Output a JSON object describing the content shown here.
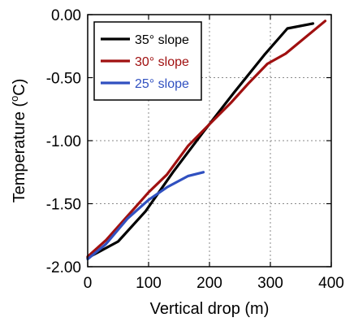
{
  "chart_data": {
    "type": "line",
    "xlabel": "Vertical drop (m)",
    "ylabel_prefix": "Temperature (",
    "ylabel_unit_sup": "o",
    "ylabel_suffix": "C)",
    "xlim": [
      0,
      400
    ],
    "ylim": [
      -2.0,
      0.0
    ],
    "x_ticks": [
      0,
      100,
      200,
      300,
      400
    ],
    "x_tick_labels": [
      "0",
      "100",
      "200",
      "300",
      "400"
    ],
    "y_ticks": [
      0.0,
      -0.5,
      -1.0,
      -1.5,
      -2.0
    ],
    "y_tick_labels": [
      "0.00",
      "-0.50",
      "-1.00",
      "-1.50",
      "-2.00"
    ],
    "grid": true,
    "legend_position": "top-left",
    "series": [
      {
        "name": "35° slope",
        "color": "#000000",
        "x": [
          0,
          50,
          95,
          140,
          190,
          240,
          290,
          328,
          370
        ],
        "y": [
          -1.93,
          -1.8,
          -1.56,
          -1.25,
          -0.93,
          -0.62,
          -0.32,
          -0.11,
          -0.07
        ]
      },
      {
        "name": "30° slope",
        "color": "#a01010",
        "x": [
          0,
          30,
          65,
          100,
          130,
          165,
          200,
          235,
          265,
          295,
          325,
          390
        ],
        "y": [
          -1.92,
          -1.79,
          -1.6,
          -1.41,
          -1.27,
          -1.04,
          -0.87,
          -0.7,
          -0.54,
          -0.39,
          -0.31,
          -0.05
        ]
      },
      {
        "name": "25° slope",
        "color": "#3050c0",
        "x": [
          0,
          30,
          65,
          100,
          130,
          165,
          190
        ],
        "y": [
          -1.94,
          -1.82,
          -1.62,
          -1.47,
          -1.37,
          -1.28,
          -1.25
        ]
      }
    ]
  }
}
